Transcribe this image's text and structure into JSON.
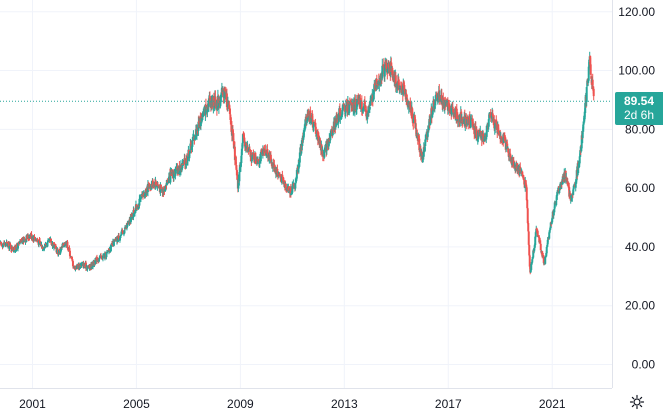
{
  "chart_data": {
    "type": "candlestick",
    "x_tick_labels": [
      "2001",
      "2005",
      "2009",
      "2013",
      "2017",
      "2021"
    ],
    "y_tick_labels": [
      "0.00",
      "20.00",
      "40.00",
      "60.00",
      "80.00",
      "100.00",
      "120.00"
    ],
    "y_ticks": [
      0,
      20,
      40,
      60,
      80,
      100,
      120
    ],
    "ylim": [
      -8,
      124
    ],
    "xlim": [
      1999.75,
      2023.3
    ],
    "grid": true,
    "colors": {
      "up": "#26a69a",
      "down": "#ef5350",
      "grid": "#f0f3fa",
      "price_line": "#26a69a"
    },
    "last_price": {
      "value": 89.54,
      "label": "89.54",
      "countdown": "2d 6h"
    },
    "series_close": [
      [
        2000.0,
        41
      ],
      [
        2000.3,
        39
      ],
      [
        2000.6,
        42
      ],
      [
        2000.9,
        44
      ],
      [
        2001.1,
        43
      ],
      [
        2001.4,
        40
      ],
      [
        2001.7,
        42
      ],
      [
        2002.0,
        38
      ],
      [
        2002.3,
        42
      ],
      [
        2002.6,
        33
      ],
      [
        2002.9,
        34
      ],
      [
        2003.2,
        33
      ],
      [
        2003.5,
        36
      ],
      [
        2003.8,
        37
      ],
      [
        2004.1,
        41
      ],
      [
        2004.4,
        44
      ],
      [
        2004.7,
        48
      ],
      [
        2004.9,
        52
      ],
      [
        2005.1,
        55
      ],
      [
        2005.4,
        60
      ],
      [
        2005.7,
        62
      ],
      [
        2006.0,
        59
      ],
      [
        2006.3,
        64
      ],
      [
        2006.6,
        66
      ],
      [
        2006.9,
        69
      ],
      [
        2007.2,
        77
      ],
      [
        2007.5,
        84
      ],
      [
        2007.8,
        90
      ],
      [
        2008.1,
        89
      ],
      [
        2008.4,
        93
      ],
      [
        2008.6,
        85
      ],
      [
        2008.8,
        70
      ],
      [
        2008.9,
        60
      ],
      [
        2009.1,
        77
      ],
      [
        2009.4,
        71
      ],
      [
        2009.7,
        70
      ],
      [
        2010.0,
        73
      ],
      [
        2010.3,
        67
      ],
      [
        2010.6,
        63
      ],
      [
        2010.9,
        59
      ],
      [
        2011.1,
        61
      ],
      [
        2011.3,
        72
      ],
      [
        2011.6,
        86
      ],
      [
        2011.9,
        80
      ],
      [
        2012.2,
        71
      ],
      [
        2012.5,
        79
      ],
      [
        2012.8,
        85
      ],
      [
        2013.0,
        87
      ],
      [
        2013.3,
        88
      ],
      [
        2013.6,
        89
      ],
      [
        2013.9,
        85
      ],
      [
        2014.2,
        95
      ],
      [
        2014.5,
        100
      ],
      [
        2014.7,
        102
      ],
      [
        2015.0,
        96
      ],
      [
        2015.3,
        93
      ],
      [
        2015.6,
        86
      ],
      [
        2015.8,
        78
      ],
      [
        2016.0,
        70
      ],
      [
        2016.3,
        84
      ],
      [
        2016.6,
        92
      ],
      [
        2016.8,
        89
      ],
      [
        2017.0,
        88
      ],
      [
        2017.3,
        85
      ],
      [
        2017.6,
        83
      ],
      [
        2017.9,
        82
      ],
      [
        2018.1,
        78
      ],
      [
        2018.4,
        77
      ],
      [
        2018.6,
        85
      ],
      [
        2018.9,
        80
      ],
      [
        2019.2,
        75
      ],
      [
        2019.5,
        68
      ],
      [
        2019.8,
        66
      ],
      [
        2020.0,
        60
      ],
      [
        2020.15,
        31
      ],
      [
        2020.4,
        46
      ],
      [
        2020.7,
        34
      ],
      [
        2020.9,
        46
      ],
      [
        2021.2,
        58
      ],
      [
        2021.5,
        65
      ],
      [
        2021.7,
        56
      ],
      [
        2021.9,
        62
      ],
      [
        2022.1,
        74
      ],
      [
        2022.3,
        91
      ],
      [
        2022.45,
        104
      ],
      [
        2022.6,
        89.54
      ]
    ]
  },
  "settings_icon": "gear-icon"
}
